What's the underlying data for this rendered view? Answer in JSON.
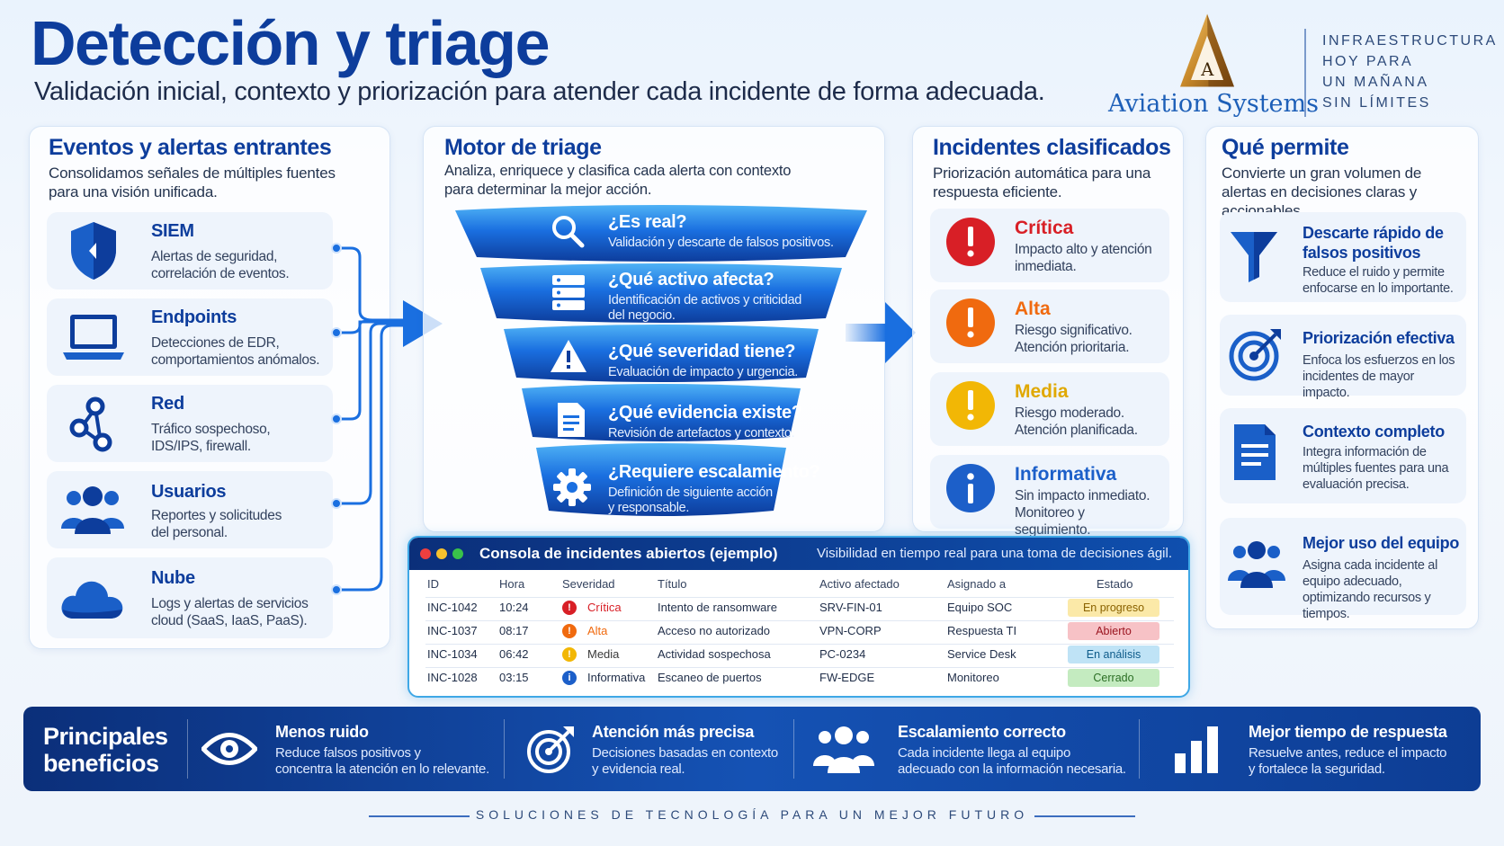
{
  "header": {
    "title": "Detección y triage",
    "subtitle": "Validación inicial, contexto y priorización para atender cada incidente de forma adecuada.",
    "logo_letter": "A",
    "logo_text": "Aviation Systems",
    "slogan": [
      "INFRAESTRUCTURA",
      "HOY PARA",
      "UN MAÑANA",
      "SIN LÍMITES"
    ]
  },
  "events": {
    "title": "Eventos y alertas entrantes",
    "desc": "Consolidamos señales de múltiples fuentes para una visión unificada.",
    "items": [
      {
        "title": "SIEM",
        "desc": "Alertas de seguridad, correlación de eventos.",
        "icon": "shield-icon"
      },
      {
        "title": "Endpoints",
        "desc": "Detecciones de EDR, comportamientos anómalos.",
        "icon": "laptop-icon"
      },
      {
        "title": "Red",
        "desc": "Tráfico sospechoso, IDS/IPS, firewall.",
        "icon": "network-icon"
      },
      {
        "title": "Usuarios",
        "desc": "Reportes y solicitudes del personal.",
        "icon": "users-icon"
      },
      {
        "title": "Nube",
        "desc": "Logs y alertas de servicios cloud (SaaS, IaaS, PaaS).",
        "icon": "cloud-icon"
      }
    ]
  },
  "triage": {
    "title": "Motor de triage",
    "desc": "Analiza, enriquece y clasifica cada alerta con contexto para determinar la mejor acción.",
    "steps": [
      {
        "title": "¿Es real?",
        "desc": "Validación y descarte de falsos positivos.",
        "icon": "search-icon"
      },
      {
        "title": "¿Qué activo afecta?",
        "desc": "Identificación de activos y criticidad del negocio.",
        "icon": "server-icon"
      },
      {
        "title": "¿Qué severidad tiene?",
        "desc": "Evaluación de impacto y urgencia.",
        "icon": "warning-icon"
      },
      {
        "title": "¿Qué evidencia existe?",
        "desc": "Revisión de artefactos y contexto.",
        "icon": "document-icon"
      },
      {
        "title": "¿Requiere escalamiento?",
        "desc": "Definición de siguiente acción y responsable.",
        "icon": "gear-icon"
      }
    ]
  },
  "classified": {
    "title": "Incidentes clasificados",
    "desc": "Priorización automática para una respuesta eficiente.",
    "items": [
      {
        "title": "Crítica",
        "desc": "Impacto alto y atención inmediata.",
        "color": "#d81f26"
      },
      {
        "title": "Alta",
        "desc": "Riesgo significativo. Atención prioritaria.",
        "color": "#f06a0f"
      },
      {
        "title": "Media",
        "desc": "Riesgo moderado. Atención planificada.",
        "color": "#f2b705"
      },
      {
        "title": "Informativa",
        "desc": "Sin impacto inmediato. Monitoreo y seguimiento.",
        "color": "#1c5fc9"
      }
    ]
  },
  "allows": {
    "title": "Qué permite",
    "desc": "Convierte un gran volumen de alertas en decisiones claras y accionables.",
    "items": [
      {
        "title": "Descarte rápido de falsos positivos",
        "desc": "Reduce el ruido y permite enfocarse en lo importante.",
        "icon": "funnel-icon"
      },
      {
        "title": "Priorización efectiva",
        "desc": "Enfoca los esfuerzos en los incidentes de mayor impacto.",
        "icon": "target-icon"
      },
      {
        "title": "Contexto completo",
        "desc": "Integra información de múltiples fuentes para una evaluación precisa.",
        "icon": "document-icon"
      },
      {
        "title": "Mejor uso del equipo",
        "desc": "Asigna cada incidente al equipo adecuado, optimizando recursos y tiempos.",
        "icon": "team-icon"
      }
    ]
  },
  "console": {
    "title": "Consola de incidentes abiertos (ejemplo)",
    "subtitle": "Visibilidad en tiempo real para una toma de decisiones ágil.",
    "columns": [
      "ID",
      "Hora",
      "Severidad",
      "Título",
      "Activo afectado",
      "Asignado a",
      "Estado"
    ],
    "rows": [
      {
        "id": "INC-1042",
        "time": "10:24",
        "severity": "Crítica",
        "sev_color": "#d81f26",
        "title": "Intento de ransomware",
        "asset": "SRV-FIN-01",
        "assigned": "Equipo SOC",
        "status": "En progreso",
        "status_bg": "#fbe9a8",
        "status_fg": "#8a6200"
      },
      {
        "id": "INC-1037",
        "time": "08:17",
        "severity": "Alta",
        "sev_color": "#f06a0f",
        "title": "Acceso no autorizado",
        "asset": "VPN-CORP",
        "assigned": "Respuesta TI",
        "status": "Abierto",
        "status_bg": "#f7c2c6",
        "status_fg": "#9b1520"
      },
      {
        "id": "INC-1034",
        "time": "06:42",
        "severity": "Media",
        "sev_color": "#f2b705",
        "title": "Actividad sospechosa",
        "asset": "PC-0234",
        "assigned": "Service Desk",
        "status": "En análisis",
        "status_bg": "#bfe3f6",
        "status_fg": "#0d5b8a"
      },
      {
        "id": "INC-1028",
        "time": "03:15",
        "severity": "Informativa",
        "sev_color": "#1c5fc9",
        "title": "Escaneo de puertos",
        "asset": "FW-EDGE",
        "assigned": "Monitoreo",
        "status": "Cerrado",
        "status_bg": "#c4ebc0",
        "status_fg": "#2b6e24"
      }
    ]
  },
  "benefits": {
    "title": "Principales beneficios",
    "items": [
      {
        "title": "Menos ruido",
        "desc": [
          "Reduce falsos positivos y",
          "concentra la atención en lo relevante."
        ],
        "icon": "eye-icon"
      },
      {
        "title": "Atención más precisa",
        "desc": [
          "Decisiones basadas en contexto",
          "y evidencia real."
        ],
        "icon": "target-icon"
      },
      {
        "title": "Escalamiento correcto",
        "desc": [
          "Cada incidente llega al equipo",
          "adecuado con la información necesaria."
        ],
        "icon": "team-icon"
      },
      {
        "title": "Mejor tiempo de respuesta",
        "desc": [
          "Resuelve antes, reduce el impacto",
          "y fortalece la seguridad."
        ],
        "icon": "bar-chart-icon"
      }
    ]
  },
  "footer": "SOLUCIONES DE TECNOLOGÍA PARA UN MEJOR FUTURO"
}
